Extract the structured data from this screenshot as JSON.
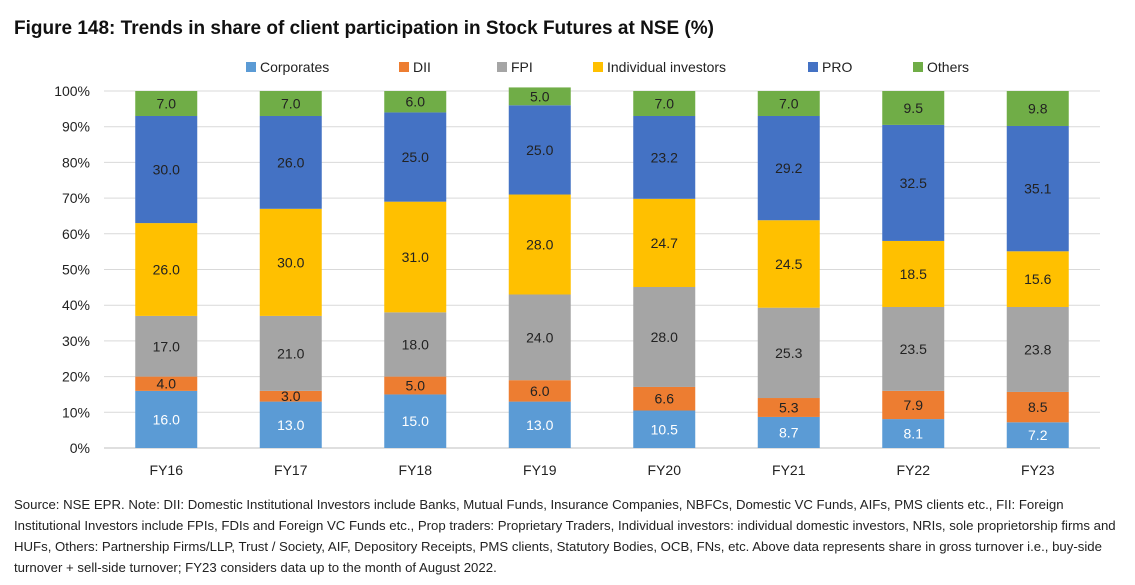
{
  "title": "Figure 148: Trends in share of client participation in Stock Futures at NSE (%)",
  "footnote": "Source: NSE EPR. Note: DII: Domestic Institutional Investors include Banks, Mutual Funds, Insurance Companies, NBFCs, Domestic VC Funds, AIFs, PMS clients etc., FII: Foreign Institutional Investors include FPIs, FDIs and Foreign VC Funds etc., Prop traders: Proprietary Traders, Individual investors: individual domestic investors, NRIs, sole proprietorship firms and HUFs, Others: Partnership Firms/LLP, Trust / Society, AIF, Depository Receipts, PMS clients, Statutory Bodies, OCB, FNs, etc. Above data represents share in gross turnover i.e., buy-side turnover + sell-side turnover; FY23 considers data up to the month of August 2022.",
  "chart_data": {
    "type": "bar",
    "stacked": true,
    "title": "Figure 148: Trends in share of client participation in Stock Futures at NSE (%)",
    "categories": [
      "FY16",
      "FY17",
      "FY18",
      "FY19",
      "FY20",
      "FY21",
      "FY22",
      "FY23"
    ],
    "ylim": [
      0,
      100
    ],
    "yticks": [
      "0%",
      "10%",
      "20%",
      "30%",
      "40%",
      "50%",
      "60%",
      "70%",
      "80%",
      "90%",
      "100%"
    ],
    "grid": true,
    "legend": "top",
    "series": [
      {
        "name": "Corporates",
        "color": "#5b9bd5",
        "labels": [
          "16.0",
          "13.0",
          "15.0",
          "13.0",
          "10.5",
          "8.7",
          "8.1",
          "7.2"
        ],
        "values": [
          16.0,
          13.0,
          15.0,
          13.0,
          10.5,
          8.7,
          8.1,
          7.2
        ]
      },
      {
        "name": "DII",
        "color": "#ed7d31",
        "labels": [
          "4.0",
          "3.0",
          "5.0",
          "6.0",
          "6.6",
          "5.3",
          "7.9",
          "8.5"
        ],
        "values": [
          4.0,
          3.0,
          5.0,
          6.0,
          6.6,
          5.3,
          7.9,
          8.5
        ]
      },
      {
        "name": "FPI",
        "color": "#a5a5a5",
        "labels": [
          "17.0",
          "21.0",
          "18.0",
          "24.0",
          "28.0",
          "25.3",
          "23.5",
          "23.8"
        ],
        "values": [
          17.0,
          21.0,
          18.0,
          24.0,
          28.0,
          25.3,
          23.5,
          23.8
        ]
      },
      {
        "name": "Individual investors",
        "color": "#ffc000",
        "labels": [
          "26.0",
          "30.0",
          "31.0",
          "28.0",
          "24.7",
          "24.5",
          "18.5",
          "15.6"
        ],
        "values": [
          26.0,
          30.0,
          31.0,
          28.0,
          24.7,
          24.5,
          18.5,
          15.6
        ]
      },
      {
        "name": "PRO",
        "color": "#4472c4",
        "labels": [
          "30.0",
          "26.0",
          "25.0",
          "25.0",
          "23.2",
          "29.2",
          "32.5",
          "35.1"
        ],
        "values": [
          30.0,
          26.0,
          25.0,
          25.0,
          23.2,
          29.2,
          32.5,
          35.1
        ]
      },
      {
        "name": "Others",
        "color": "#70ad47",
        "labels": [
          "7.0",
          "7.0",
          "6.0",
          "5.0",
          "7.0",
          "7.0",
          "9.5",
          "9.8"
        ],
        "values": [
          7.0,
          7.0,
          6.0,
          5.0,
          7.0,
          7.0,
          9.5,
          9.8
        ]
      }
    ]
  }
}
